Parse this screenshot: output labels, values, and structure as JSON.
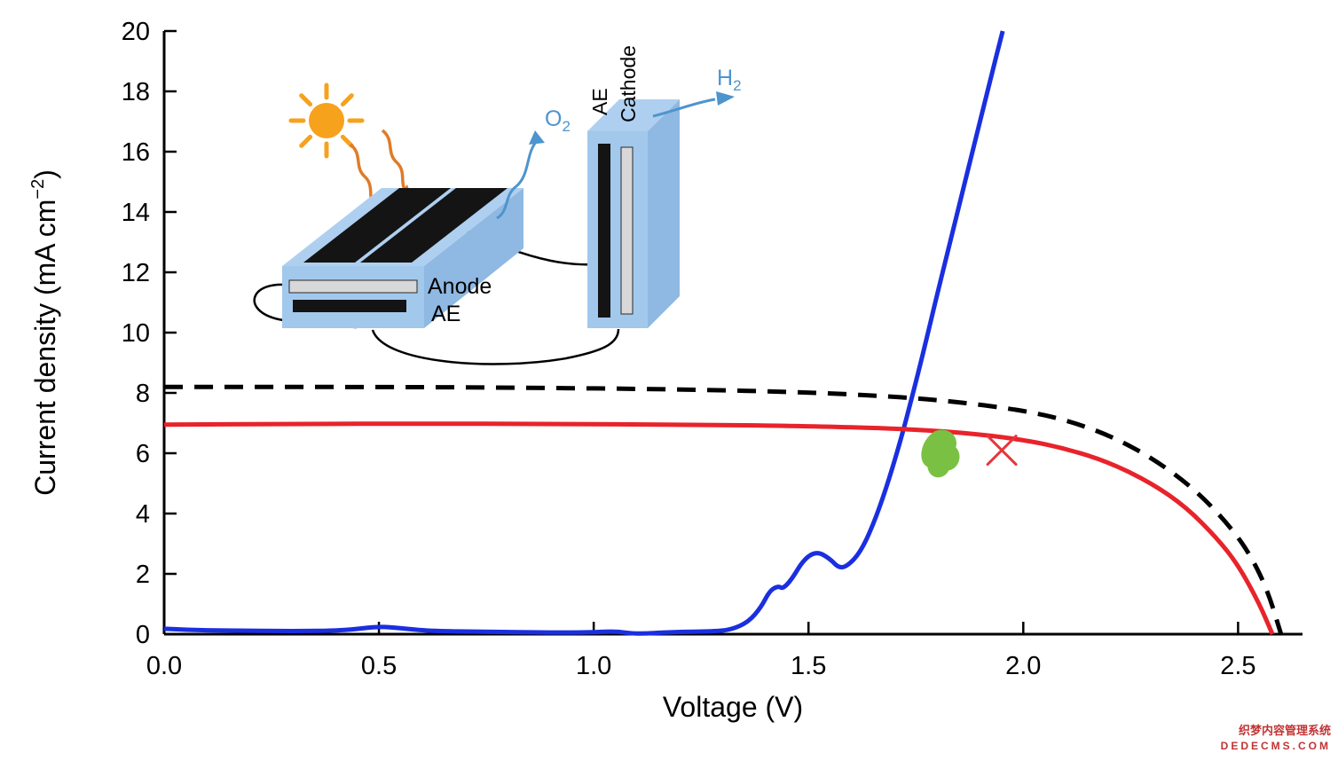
{
  "figure": {
    "background": "#ffffff"
  },
  "watermark": {
    "line1": "织梦内容管理系统",
    "line2": "DEDECMS.COM",
    "color": "#c23434"
  },
  "inset": {
    "anode_label": "Anode",
    "ae_front_label": "AE",
    "ae_side_label": "AE",
    "cathode_label": "Cathode",
    "o2_base": "O",
    "o2_sub": "2",
    "h2_base": "H",
    "h2_sub": "2",
    "colors": {
      "slab_top": "#aecff0",
      "slab_front": "#a2c8ec",
      "slab_side": "#8fb9e2",
      "pv_panel": "#141414",
      "electrode_gray": "#d8d8d8",
      "sun": "#f6a21d",
      "light_arrow": "#e07b28",
      "gas": "#4e94ce",
      "wire": "#000000"
    }
  },
  "chart_data": {
    "type": "line",
    "title": "",
    "xlabel": "Voltage (V)",
    "ylabel": "Current density (mA cm⁻²)",
    "ylabel_prefix": "Current density (mA cm",
    "ylabel_sup": "−2",
    "ylabel_suffix": ")",
    "xlim": [
      0,
      2.65
    ],
    "ylim": [
      0,
      20
    ],
    "xticks": [
      0,
      0.5,
      1.0,
      1.5,
      2.0,
      2.5
    ],
    "xtick_labels": [
      "0.0",
      "0.5",
      "1.0",
      "1.5",
      "2.0",
      "2.5"
    ],
    "yticks": [
      0,
      2,
      4,
      6,
      8,
      10,
      12,
      14,
      16,
      18,
      20
    ],
    "ytick_labels": [
      "0",
      "2",
      "4",
      "6",
      "8",
      "10",
      "12",
      "14",
      "16",
      "18",
      "20"
    ],
    "grid": false,
    "legend": "none",
    "series": [
      {
        "name": "electrolyser-jv",
        "color": "#1a2fe0",
        "style": "solid",
        "width": 5,
        "points": [
          [
            0,
            0.18
          ],
          [
            0.05,
            0.14
          ],
          [
            0.15,
            0.12
          ],
          [
            0.3,
            0.1
          ],
          [
            0.42,
            0.12
          ],
          [
            0.5,
            0.26
          ],
          [
            0.55,
            0.2
          ],
          [
            0.62,
            0.1
          ],
          [
            0.75,
            0.08
          ],
          [
            0.9,
            0.05
          ],
          [
            1.0,
            0.06
          ],
          [
            1.05,
            0.1
          ],
          [
            1.1,
            0.0
          ],
          [
            1.18,
            0.07
          ],
          [
            1.28,
            0.09
          ],
          [
            1.32,
            0.15
          ],
          [
            1.36,
            0.4
          ],
          [
            1.39,
            0.9
          ],
          [
            1.41,
            1.45
          ],
          [
            1.43,
            1.6
          ],
          [
            1.44,
            1.5
          ],
          [
            1.46,
            1.8
          ],
          [
            1.49,
            2.5
          ],
          [
            1.52,
            2.75
          ],
          [
            1.55,
            2.5
          ],
          [
            1.57,
            2.2
          ],
          [
            1.59,
            2.25
          ],
          [
            1.62,
            2.7
          ],
          [
            1.65,
            3.6
          ],
          [
            1.68,
            4.8
          ],
          [
            1.71,
            6.2
          ],
          [
            1.74,
            7.8
          ],
          [
            1.77,
            9.5
          ],
          [
            1.8,
            11.3
          ],
          [
            1.84,
            13.6
          ],
          [
            1.88,
            15.9
          ],
          [
            1.92,
            18.2
          ],
          [
            1.952,
            20.0
          ]
        ]
      },
      {
        "name": "solar-cell-measured",
        "color": "#e8232b",
        "style": "solid",
        "width": 5,
        "points": [
          [
            0,
            6.95
          ],
          [
            0.3,
            6.97
          ],
          [
            0.6,
            6.98
          ],
          [
            0.9,
            6.97
          ],
          [
            1.2,
            6.95
          ],
          [
            1.5,
            6.9
          ],
          [
            1.7,
            6.82
          ],
          [
            1.85,
            6.7
          ],
          [
            2.0,
            6.45
          ],
          [
            2.1,
            6.15
          ],
          [
            2.2,
            5.7
          ],
          [
            2.3,
            5.0
          ],
          [
            2.38,
            4.2
          ],
          [
            2.45,
            3.2
          ],
          [
            2.5,
            2.3
          ],
          [
            2.55,
            1.0
          ],
          [
            2.58,
            0.0
          ]
        ]
      },
      {
        "name": "solar-cell-ideal-dashed",
        "color": "#000000",
        "style": "dashed",
        "dash": "21 13",
        "width": 5,
        "points": [
          [
            0,
            8.2
          ],
          [
            0.4,
            8.2
          ],
          [
            0.8,
            8.18
          ],
          [
            1.2,
            8.12
          ],
          [
            1.5,
            8.02
          ],
          [
            1.7,
            7.88
          ],
          [
            1.85,
            7.7
          ],
          [
            2.0,
            7.42
          ],
          [
            2.1,
            7.1
          ],
          [
            2.2,
            6.6
          ],
          [
            2.3,
            5.85
          ],
          [
            2.4,
            4.8
          ],
          [
            2.48,
            3.6
          ],
          [
            2.53,
            2.6
          ],
          [
            2.57,
            1.4
          ],
          [
            2.6,
            0.0
          ]
        ]
      }
    ],
    "annotations": [
      {
        "type": "blob",
        "label": "operating-region",
        "x": 1.81,
        "y": 5.9,
        "color": "#7ac143"
      },
      {
        "type": "x-marker",
        "label": "operating-point",
        "x": 1.95,
        "y": 6.1,
        "color": "#e8353b",
        "size": 16
      }
    ]
  }
}
